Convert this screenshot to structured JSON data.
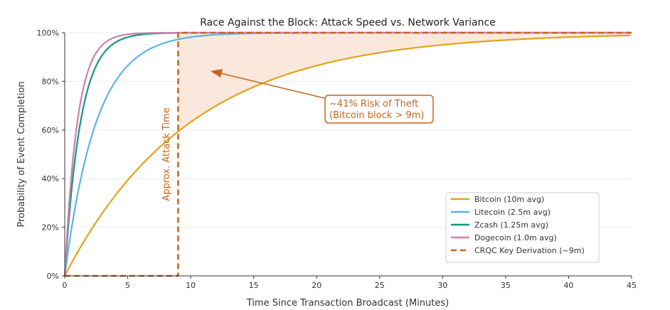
{
  "chart_data": {
    "type": "line",
    "title": "Race Against the Block: Attack Speed vs. Network Variance",
    "xlabel": "Time Since Transaction Broadcast (Minutes)",
    "ylabel": "Probability of Event Completion",
    "xlim": [
      0,
      45
    ],
    "ylim": [
      0,
      100
    ],
    "x_ticks": [
      0,
      5,
      10,
      15,
      20,
      25,
      30,
      35,
      40,
      45
    ],
    "y_ticks": [
      0,
      20,
      40,
      60,
      80,
      100
    ],
    "y_tick_labels": [
      "0%",
      "20%",
      "40%",
      "60%",
      "80%",
      "100%"
    ],
    "grid": "horizontal",
    "legend_position": "lower-right",
    "series": [
      {
        "name": "Bitcoin (10m avg)",
        "model": "exponential CDF",
        "mean_minutes": 10,
        "color": "#E5A11A"
      },
      {
        "name": "Litecoin (2.5m avg)",
        "model": "exponential CDF",
        "mean_minutes": 2.5,
        "color": "#5BB5E3"
      },
      {
        "name": "Zcash (1.25m avg)",
        "model": "exponential CDF",
        "mean_minutes": 1.25,
        "color": "#11997A"
      },
      {
        "name": "Dogecoin (1.0m avg)",
        "model": "exponential CDF",
        "mean_minutes": 1.0,
        "color": "#CC7FAE"
      },
      {
        "name": "CRQC Key Derivation (~9m)",
        "model": "step",
        "step_at_minutes": 9,
        "color": "#C7641E",
        "style": "dashed"
      }
    ],
    "shaded_region": {
      "from_minutes": 9,
      "to_minutes": 45,
      "between": "Bitcoin curve and 100%",
      "color": "#F9E8DB"
    },
    "annotations": [
      {
        "text": "Approx. Attack Time",
        "color": "#C7641E"
      },
      {
        "text_line1": "~41% Risk of Theft",
        "text_line2": "(Bitcoin block > 9m)",
        "color": "#C7641E"
      }
    ]
  }
}
